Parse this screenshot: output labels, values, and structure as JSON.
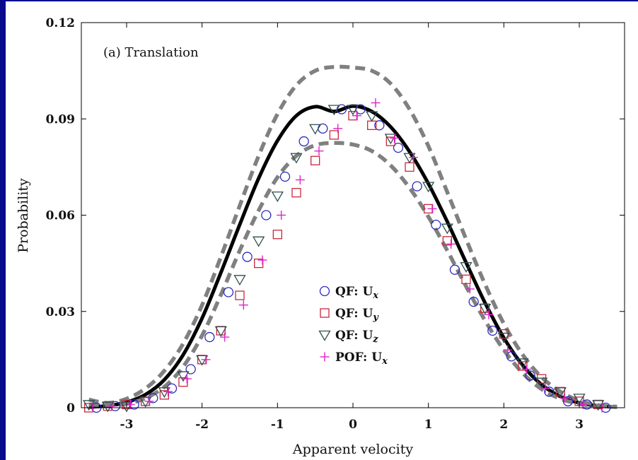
{
  "chart_data": {
    "type": "scatter",
    "annotation": "(a) Translation",
    "xlabel": "Apparent velocity",
    "ylabel": "Probability",
    "xlim": [
      -3.6,
      3.6
    ],
    "ylim": [
      0,
      0.12
    ],
    "x_ticks": [
      -3,
      -2,
      -1,
      0,
      1,
      2,
      3
    ],
    "x_tick_labels": [
      "-3",
      "-2",
      "-1",
      "0",
      "1",
      "2",
      "3"
    ],
    "y_ticks": [
      0,
      0.03,
      0.06,
      0.09,
      0.12
    ],
    "y_tick_labels": [
      "0",
      "0.03",
      "0.06",
      "0.09",
      "0.12"
    ],
    "grid": false,
    "legend_position": "center-right",
    "curves": [
      {
        "style": "solid",
        "color": "#000000",
        "x": [
          -3.5,
          -3.25,
          -3.0,
          -2.75,
          -2.5,
          -2.25,
          -2.0,
          -1.75,
          -1.5,
          -1.25,
          -1.0,
          -0.75,
          -0.5,
          -0.25,
          0.0,
          0.25,
          0.5,
          0.75,
          1.0,
          1.25,
          1.5,
          1.75,
          2.0,
          2.25,
          2.5,
          2.75,
          3.0,
          3.25,
          3.5
        ],
        "y": [
          0.0002,
          0.0006,
          0.0017,
          0.0041,
          0.0087,
          0.0165,
          0.0279,
          0.0421,
          0.0571,
          0.0715,
          0.0832,
          0.091,
          0.0938,
          0.0923,
          0.094,
          0.0923,
          0.0875,
          0.0798,
          0.0698,
          0.058,
          0.0452,
          0.0327,
          0.0218,
          0.0132,
          0.0072,
          0.0035,
          0.0015,
          0.0006,
          0.0002
        ]
      },
      {
        "style": "dashed",
        "color": "#808080",
        "x": [
          -3.5,
          -3.25,
          -3.0,
          -2.75,
          -2.5,
          -2.25,
          -2.0,
          -1.75,
          -1.5,
          -1.25,
          -1.0,
          -0.75,
          -0.5,
          -0.25,
          0.0,
          0.25,
          0.5,
          0.75,
          1.0,
          1.25,
          1.5,
          1.75,
          2.0,
          2.25,
          2.5,
          2.75,
          3.0,
          3.25,
          3.5
        ],
        "y": [
          0.0025,
          0.0015,
          0.0028,
          0.006,
          0.0115,
          0.02,
          0.032,
          0.047,
          0.063,
          0.0785,
          0.0915,
          0.1005,
          0.105,
          0.1062,
          0.106,
          0.105,
          0.101,
          0.093,
          0.0815,
          0.0672,
          0.0525,
          0.0385,
          0.0262,
          0.0165,
          0.0095,
          0.005,
          0.0022,
          0.0008,
          0.0003
        ]
      },
      {
        "style": "dashed",
        "color": "#808080",
        "x": [
          -3.5,
          -3.25,
          -3.0,
          -2.75,
          -2.5,
          -2.25,
          -2.0,
          -1.75,
          -1.5,
          -1.25,
          -1.0,
          -0.75,
          -0.5,
          -0.25,
          0.0,
          0.25,
          0.5,
          0.75,
          1.0,
          1.25,
          1.5,
          1.75,
          2.0,
          2.25,
          2.5,
          2.75,
          3.0,
          3.25,
          3.5
        ],
        "y": [
          0.001,
          0.0008,
          0.0012,
          0.003,
          0.0065,
          0.0128,
          0.0225,
          0.0352,
          0.049,
          0.0615,
          0.0718,
          0.0785,
          0.0818,
          0.0825,
          0.082,
          0.08,
          0.0755,
          0.0685,
          0.0595,
          0.049,
          0.0378,
          0.0272,
          0.018,
          0.0108,
          0.0058,
          0.0028,
          0.0012,
          0.0005,
          0.0002
        ]
      }
    ],
    "series": [
      {
        "name": "QF: Ux",
        "name_base": "QF: U",
        "name_sub": "x",
        "marker": "circle",
        "color": "#2b2bbf",
        "x": [
          -3.4,
          -3.15,
          -2.9,
          -2.65,
          -2.4,
          -2.15,
          -1.9,
          -1.65,
          -1.4,
          -1.15,
          -0.9,
          -0.65,
          -0.4,
          -0.15,
          0.1,
          0.35,
          0.6,
          0.85,
          1.1,
          1.35,
          1.6,
          1.85,
          2.1,
          2.35,
          2.6,
          2.85,
          3.1,
          3.35
        ],
        "y": [
          0.0,
          0.0005,
          0.001,
          0.003,
          0.006,
          0.012,
          0.022,
          0.036,
          0.047,
          0.06,
          0.072,
          0.083,
          0.087,
          0.093,
          0.093,
          0.088,
          0.081,
          0.069,
          0.057,
          0.043,
          0.033,
          0.024,
          0.016,
          0.01,
          0.005,
          0.002,
          0.001,
          0.0
        ]
      },
      {
        "name": "QF: Uy",
        "name_base": "QF: U",
        "name_sub": "y",
        "marker": "square",
        "color": "#c8283c",
        "x": [
          -3.5,
          -3.25,
          -3.0,
          -2.75,
          -2.5,
          -2.25,
          -2.0,
          -1.75,
          -1.5,
          -1.25,
          -1.0,
          -0.75,
          -0.5,
          -0.25,
          0.0,
          0.25,
          0.5,
          0.75,
          1.0,
          1.25,
          1.5,
          1.75,
          2.0,
          2.25,
          2.5,
          2.75,
          3.0,
          3.25
        ],
        "y": [
          0.0,
          0.0005,
          0.001,
          0.002,
          0.004,
          0.008,
          0.015,
          0.024,
          0.035,
          0.045,
          0.054,
          0.067,
          0.077,
          0.085,
          0.091,
          0.088,
          0.083,
          0.075,
          0.062,
          0.052,
          0.04,
          0.031,
          0.023,
          0.013,
          0.009,
          0.005,
          0.002,
          0.001
        ]
      },
      {
        "name": "QF: Uz",
        "name_base": "QF: U",
        "name_sub": "z",
        "marker": "triangle-down",
        "color": "#2f4f4f",
        "x": [
          -3.5,
          -3.25,
          -3.0,
          -2.75,
          -2.5,
          -2.25,
          -2.0,
          -1.75,
          -1.5,
          -1.25,
          -1.0,
          -0.75,
          -0.5,
          -0.25,
          0.0,
          0.25,
          0.5,
          0.75,
          1.0,
          1.25,
          1.5,
          1.75,
          2.0,
          2.25,
          2.5,
          2.75,
          3.0,
          3.25
        ],
        "y": [
          0.001,
          0.0005,
          0.0005,
          0.002,
          0.005,
          0.01,
          0.015,
          0.024,
          0.04,
          0.052,
          0.066,
          0.078,
          0.087,
          0.093,
          0.093,
          0.091,
          0.084,
          0.078,
          0.069,
          0.056,
          0.044,
          0.031,
          0.022,
          0.014,
          0.008,
          0.005,
          0.003,
          0.001
        ]
      },
      {
        "name": "POF: Ux",
        "name_base": "POF: U",
        "name_sub": "x",
        "marker": "plus",
        "color": "#e024c8",
        "x": [
          -3.45,
          -3.2,
          -2.95,
          -2.7,
          -2.45,
          -2.2,
          -1.95,
          -1.7,
          -1.45,
          -1.2,
          -0.95,
          -0.7,
          -0.45,
          -0.2,
          0.05,
          0.3,
          0.55,
          0.8,
          1.05,
          1.3,
          1.55,
          1.8,
          2.05,
          2.3,
          2.55,
          2.8,
          3.05,
          3.3
        ],
        "y": [
          0.0,
          0.0005,
          0.001,
          0.002,
          0.005,
          0.009,
          0.015,
          0.022,
          0.032,
          0.046,
          0.06,
          0.071,
          0.08,
          0.087,
          0.091,
          0.095,
          0.084,
          0.078,
          0.062,
          0.051,
          0.037,
          0.029,
          0.018,
          0.012,
          0.006,
          0.003,
          0.001,
          0.0
        ]
      }
    ]
  }
}
